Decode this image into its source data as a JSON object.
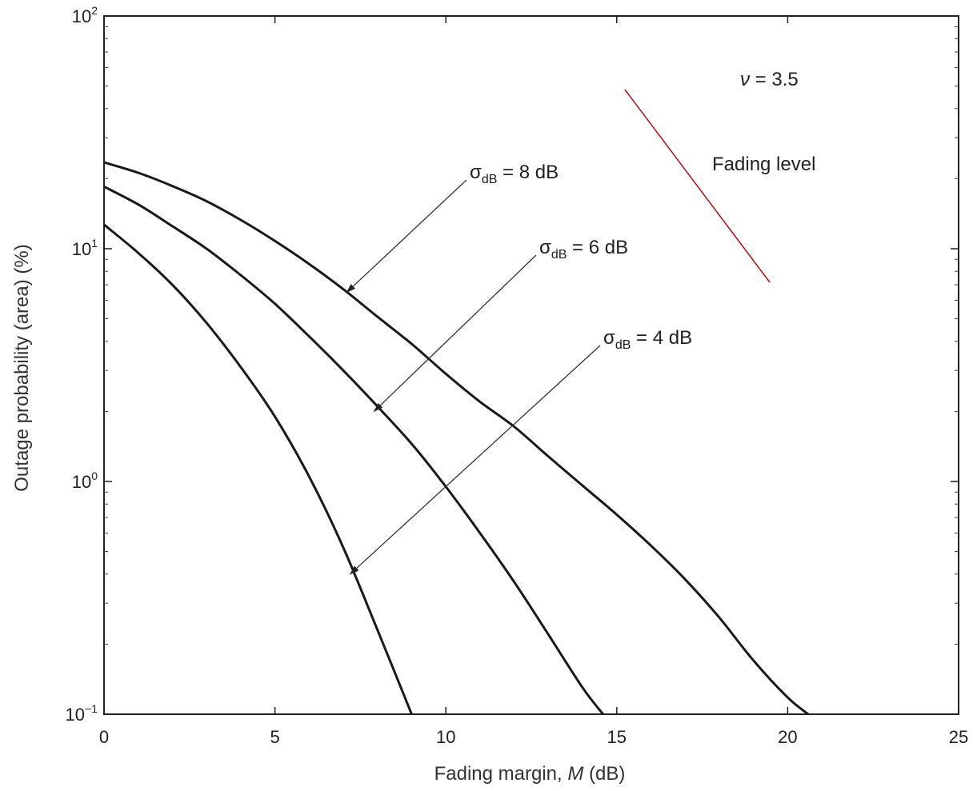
{
  "chart_data": {
    "type": "line",
    "title": "",
    "xlabel_prefix": "Fading margin, ",
    "xlabel_var": "M",
    "xlabel_suffix": " (dB)",
    "ylabel": "Outage probability (area) (%)",
    "xlim": [
      0,
      25
    ],
    "ylim": [
      0.1,
      100
    ],
    "yscale": "log",
    "grid": false,
    "x_ticks": [
      "0",
      "5",
      "10",
      "15",
      "20",
      "25"
    ],
    "y_ticks": [
      {
        "base": "10",
        "exp": "2",
        "value": 100
      },
      {
        "base": "10",
        "exp": "1",
        "value": 10
      },
      {
        "base": "10",
        "exp": "0",
        "value": 1
      },
      {
        "base": "10",
        "exp": "−1",
        "value": 0.1
      }
    ],
    "series": [
      {
        "sigma": "8",
        "x": [
          0,
          1,
          2,
          3,
          4,
          5,
          6,
          7,
          8,
          9,
          10,
          11,
          12,
          13,
          14,
          15,
          16,
          17,
          18,
          19,
          20,
          20.6
        ],
        "y": [
          23.5,
          21.2,
          18.6,
          16.0,
          13.3,
          10.8,
          8.6,
          6.7,
          5.1,
          3.9,
          2.9,
          2.2,
          1.72,
          1.28,
          0.96,
          0.72,
          0.53,
          0.38,
          0.26,
          0.17,
          0.118,
          0.1
        ]
      },
      {
        "sigma": "6",
        "x": [
          0,
          1,
          2,
          3,
          4,
          5,
          6,
          7,
          8,
          9,
          10,
          11,
          12,
          13,
          14,
          14.6
        ],
        "y": [
          18.5,
          15.5,
          12.5,
          10.0,
          7.7,
          5.8,
          4.2,
          3.0,
          2.1,
          1.45,
          0.95,
          0.6,
          0.37,
          0.22,
          0.13,
          0.1
        ]
      },
      {
        "sigma": "4",
        "x": [
          0,
          1,
          2,
          3,
          4,
          5,
          6,
          7,
          8,
          9
        ],
        "y": [
          12.7,
          9.6,
          7.0,
          4.8,
          3.1,
          1.9,
          1.05,
          0.52,
          0.23,
          0.1
        ]
      }
    ],
    "annotations": [
      {
        "sigma_symbol": "σ",
        "sub": "dB",
        "rest": " = 8 dB",
        "target_x": 7.1,
        "target_y": 6.5
      },
      {
        "sigma_symbol": "σ",
        "sub": "dB",
        "rest": " = 6 dB",
        "target_x": 7.9,
        "target_y": 2.0
      },
      {
        "sigma_symbol": "σ",
        "sub": "dB",
        "rest": " = 4 dB",
        "target_x": 7.2,
        "target_y": 0.4
      }
    ],
    "nu_label": {
      "var": "ν",
      "rest": " = 3.5"
    },
    "fading_label": "Fading level",
    "fading_line_color": "#b01010"
  }
}
